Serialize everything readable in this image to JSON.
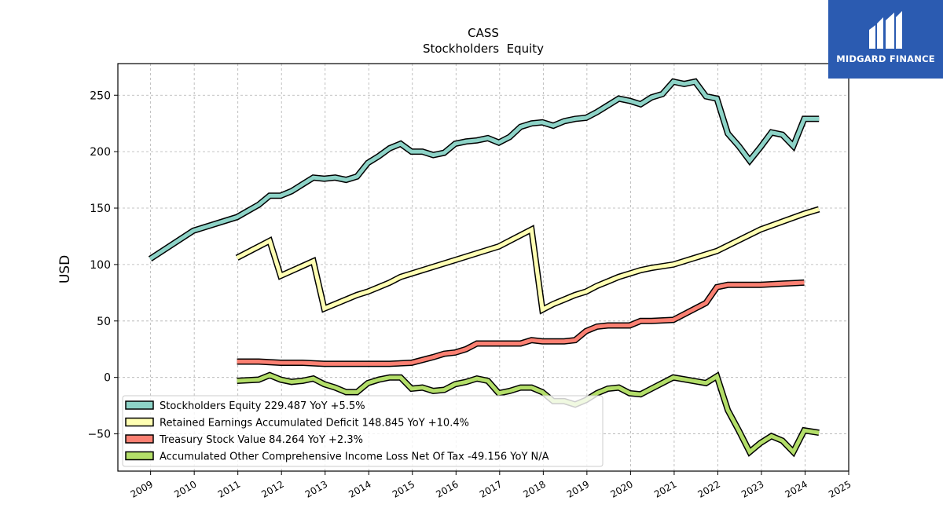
{
  "chart_data": {
    "type": "line",
    "title": "CASS",
    "subtitle": "Stockholders  Equity",
    "ylabel": "USD",
    "xlabel": "",
    "xlim": [
      2008.25,
      2025.0
    ],
    "ylim": [
      -83,
      278
    ],
    "x_ticks": [
      "2009",
      "2010",
      "2011",
      "2012",
      "2013",
      "2014",
      "2015",
      "2016",
      "2017",
      "2018",
      "2019",
      "2020",
      "2021",
      "2022",
      "2023",
      "2024",
      "2025"
    ],
    "y_ticks": [
      -50,
      0,
      50,
      100,
      150,
      200,
      250
    ],
    "y_tick_labels": [
      "−50",
      "0",
      "50",
      "100",
      "150",
      "200",
      "250"
    ],
    "grid": true,
    "legend_position": "lower-left",
    "series": [
      {
        "name": "Stockholders Equity  229.487 YoY +5.5%",
        "color": "#8dd3c7",
        "points": [
          [
            2008.99,
            105
          ],
          [
            2009.98,
            130
          ],
          [
            2010.98,
            142
          ],
          [
            2011.48,
            153
          ],
          [
            2011.73,
            161
          ],
          [
            2011.98,
            161
          ],
          [
            2012.23,
            165
          ],
          [
            2012.48,
            171
          ],
          [
            2012.73,
            177
          ],
          [
            2012.98,
            176
          ],
          [
            2013.23,
            177
          ],
          [
            2013.48,
            175
          ],
          [
            2013.73,
            178
          ],
          [
            2013.98,
            190
          ],
          [
            2014.23,
            196
          ],
          [
            2014.48,
            203
          ],
          [
            2014.73,
            207
          ],
          [
            2014.98,
            200
          ],
          [
            2015.23,
            200
          ],
          [
            2015.48,
            197
          ],
          [
            2015.73,
            199
          ],
          [
            2015.98,
            207
          ],
          [
            2016.23,
            209
          ],
          [
            2016.48,
            210
          ],
          [
            2016.73,
            212
          ],
          [
            2016.98,
            208
          ],
          [
            2017.23,
            213
          ],
          [
            2017.48,
            222
          ],
          [
            2017.73,
            225
          ],
          [
            2017.98,
            226
          ],
          [
            2018.23,
            223
          ],
          [
            2018.48,
            227
          ],
          [
            2018.73,
            229
          ],
          [
            2018.98,
            230
          ],
          [
            2019.23,
            235
          ],
          [
            2019.48,
            241
          ],
          [
            2019.73,
            247
          ],
          [
            2019.98,
            245
          ],
          [
            2020.23,
            242
          ],
          [
            2020.48,
            248
          ],
          [
            2020.73,
            251
          ],
          [
            2020.98,
            262
          ],
          [
            2021.23,
            260
          ],
          [
            2021.48,
            262
          ],
          [
            2021.73,
            249
          ],
          [
            2021.98,
            247
          ],
          [
            2022.23,
            216
          ],
          [
            2022.48,
            205
          ],
          [
            2022.73,
            192
          ],
          [
            2022.98,
            204
          ],
          [
            2023.23,
            217
          ],
          [
            2023.48,
            215
          ],
          [
            2023.73,
            205
          ],
          [
            2023.98,
            229
          ],
          [
            2024.32,
            229
          ]
        ]
      },
      {
        "name": "Retained Earnings Accumulated Deficit  148.845 YoY +10.4%",
        "color": "#ffffb3",
        "points": [
          [
            2010.98,
            106
          ],
          [
            2011.73,
            121
          ],
          [
            2011.98,
            90
          ],
          [
            2012.73,
            103
          ],
          [
            2012.98,
            61
          ],
          [
            2013.73,
            73
          ],
          [
            2013.98,
            76
          ],
          [
            2014.23,
            80
          ],
          [
            2014.48,
            84
          ],
          [
            2014.73,
            89
          ],
          [
            2014.98,
            92
          ],
          [
            2015.98,
            104
          ],
          [
            2016.98,
            116
          ],
          [
            2017.73,
            131
          ],
          [
            2017.98,
            60
          ],
          [
            2018.23,
            65
          ],
          [
            2018.48,
            69
          ],
          [
            2018.73,
            73
          ],
          [
            2018.98,
            76
          ],
          [
            2019.23,
            81
          ],
          [
            2019.48,
            85
          ],
          [
            2019.73,
            89
          ],
          [
            2019.98,
            92
          ],
          [
            2020.23,
            95
          ],
          [
            2020.48,
            97
          ],
          [
            2020.98,
            100
          ],
          [
            2021.98,
            112
          ],
          [
            2022.98,
            131
          ],
          [
            2023.98,
            145
          ],
          [
            2024.32,
            149
          ]
        ]
      },
      {
        "name": "Treasury Stock Value  84.264 YoY +2.3%",
        "color": "#fb8072",
        "points": [
          [
            2010.98,
            14
          ],
          [
            2011.48,
            14
          ],
          [
            2011.98,
            13
          ],
          [
            2012.48,
            13
          ],
          [
            2012.98,
            12
          ],
          [
            2013.48,
            12
          ],
          [
            2013.98,
            12
          ],
          [
            2014.48,
            12
          ],
          [
            2014.98,
            13
          ],
          [
            2015.48,
            18
          ],
          [
            2015.73,
            21
          ],
          [
            2015.98,
            22
          ],
          [
            2016.23,
            25
          ],
          [
            2016.48,
            30
          ],
          [
            2016.98,
            30
          ],
          [
            2017.48,
            30
          ],
          [
            2017.73,
            33
          ],
          [
            2017.98,
            32
          ],
          [
            2018.48,
            32
          ],
          [
            2018.73,
            33
          ],
          [
            2018.98,
            41
          ],
          [
            2019.23,
            45
          ],
          [
            2019.48,
            46
          ],
          [
            2019.98,
            46
          ],
          [
            2020.23,
            50
          ],
          [
            2020.48,
            50
          ],
          [
            2020.98,
            51
          ],
          [
            2021.73,
            66
          ],
          [
            2021.98,
            80
          ],
          [
            2022.23,
            82
          ],
          [
            2022.48,
            82
          ],
          [
            2022.98,
            82
          ],
          [
            2023.48,
            83
          ],
          [
            2023.98,
            84
          ]
        ]
      },
      {
        "name": "Accumulated Other Comprehensive Income Loss Net Of Tax  -49.156 YoY N/A",
        "color": "#b3de69",
        "points": [
          [
            2010.98,
            -3
          ],
          [
            2011.48,
            -2
          ],
          [
            2011.73,
            2
          ],
          [
            2011.98,
            -2
          ],
          [
            2012.23,
            -4
          ],
          [
            2012.48,
            -3
          ],
          [
            2012.73,
            -1
          ],
          [
            2012.98,
            -6
          ],
          [
            2013.23,
            -9
          ],
          [
            2013.48,
            -13
          ],
          [
            2013.73,
            -13
          ],
          [
            2013.98,
            -5
          ],
          [
            2014.23,
            -2
          ],
          [
            2014.48,
            0
          ],
          [
            2014.73,
            0
          ],
          [
            2014.98,
            -10
          ],
          [
            2015.23,
            -9
          ],
          [
            2015.48,
            -12
          ],
          [
            2015.73,
            -11
          ],
          [
            2015.98,
            -6
          ],
          [
            2016.23,
            -4
          ],
          [
            2016.48,
            -1
          ],
          [
            2016.73,
            -3
          ],
          [
            2016.98,
            -14
          ],
          [
            2017.23,
            -12
          ],
          [
            2017.48,
            -9
          ],
          [
            2017.73,
            -9
          ],
          [
            2017.98,
            -13
          ],
          [
            2018.23,
            -21
          ],
          [
            2018.48,
            -21
          ],
          [
            2018.73,
            -24
          ],
          [
            2018.98,
            -20
          ],
          [
            2019.23,
            -14
          ],
          [
            2019.48,
            -10
          ],
          [
            2019.73,
            -9
          ],
          [
            2019.98,
            -14
          ],
          [
            2020.23,
            -15
          ],
          [
            2020.48,
            -10
          ],
          [
            2020.98,
            0
          ],
          [
            2021.73,
            -5
          ],
          [
            2021.98,
            1
          ],
          [
            2022.23,
            -29
          ],
          [
            2022.48,
            -47
          ],
          [
            2022.73,
            -66
          ],
          [
            2022.98,
            -58
          ],
          [
            2023.23,
            -52
          ],
          [
            2023.48,
            -56
          ],
          [
            2023.73,
            -66
          ],
          [
            2023.98,
            -47
          ],
          [
            2024.32,
            -49
          ]
        ]
      }
    ]
  },
  "logo": {
    "name": "MIDGARD FINANCE",
    "color": "#2b5bb1"
  }
}
